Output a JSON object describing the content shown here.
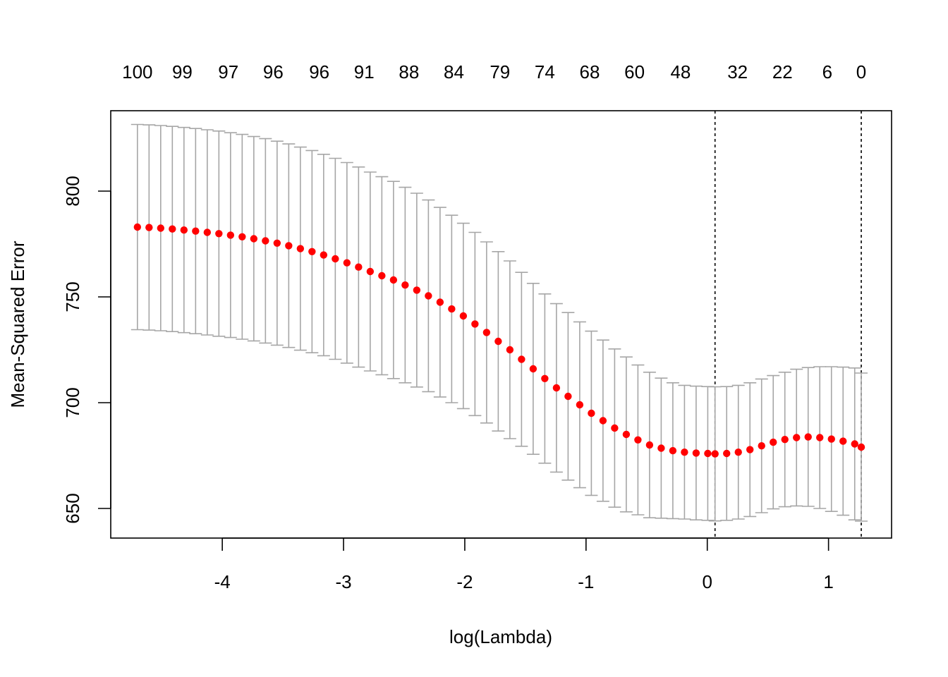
{
  "chart_data": {
    "type": "scatter",
    "title": "",
    "xlabel": "log(Lambda)",
    "ylabel": "Mean-Squared Error",
    "xlim": [
      -4.92,
      1.52
    ],
    "ylim": [
      636,
      838
    ],
    "x_ticks": [
      "-4",
      "-3",
      "-2",
      "-1",
      "0",
      "1"
    ],
    "x_tick_values": [
      -4,
      -3,
      -2,
      -1,
      0,
      1
    ],
    "y_ticks": [
      "650",
      "700",
      "750",
      "800"
    ],
    "y_tick_values": [
      650,
      700,
      750,
      800
    ],
    "top_axis_labels": [
      "100",
      "99",
      "97",
      "96",
      "96",
      "91",
      "88",
      "84",
      "79",
      "74",
      "68",
      "60",
      "48",
      "32",
      "22",
      "6",
      "0"
    ],
    "top_axis_positions": [
      -4.7,
      -4.33,
      -3.95,
      -3.58,
      -3.2,
      -2.83,
      -2.46,
      -2.09,
      -1.71,
      -1.34,
      -0.97,
      -0.6,
      -0.22,
      0.25,
      0.62,
      0.99,
      1.27
    ],
    "reference_lines": [
      0.064,
      1.27
    ],
    "colors": {
      "point": "#ff0000",
      "errorbar": "#a6a6a6",
      "reference": "#000000"
    },
    "grid": false,
    "series": [
      {
        "x": [
          -4.7,
          -4.604,
          -4.508,
          -4.412,
          -4.316,
          -4.22,
          -4.124,
          -4.028,
          -3.932,
          -3.836,
          -3.74,
          -3.644,
          -3.548,
          -3.452,
          -3.356,
          -3.26,
          -3.164,
          -3.068,
          -2.972,
          -2.876,
          -2.78,
          -2.684,
          -2.588,
          -2.492,
          -2.396,
          -2.3,
          -2.204,
          -2.108,
          -2.012,
          -1.916,
          -1.82,
          -1.724,
          -1.628,
          -1.532,
          -1.436,
          -1.34,
          -1.244,
          -1.148,
          -1.052,
          -0.956,
          -0.86,
          -0.764,
          -0.668,
          -0.572,
          -0.476,
          -0.38,
          -0.284,
          -0.188,
          -0.092,
          0.004,
          0.064,
          0.16,
          0.256,
          0.352,
          0.448,
          0.544,
          0.64,
          0.736,
          0.832,
          0.928,
          1.024,
          1.12,
          1.216,
          1.27
        ],
        "y": [
          783.0,
          782.8,
          782.5,
          782.1,
          781.6,
          781.1,
          780.5,
          779.9,
          779.2,
          778.4,
          777.5,
          776.5,
          775.4,
          774.2,
          772.8,
          771.4,
          769.8,
          768.0,
          766.1,
          764.1,
          762.0,
          760.0,
          758.0,
          755.6,
          753.2,
          750.5,
          747.5,
          744.3,
          741.0,
          737.2,
          733.2,
          729.0,
          725.0,
          720.5,
          716.0,
          711.4,
          707.0,
          703.0,
          699.0,
          695.0,
          691.5,
          688.0,
          685.0,
          682.4,
          680.0,
          678.5,
          677.3,
          676.6,
          676.2,
          676.0,
          675.8,
          676.0,
          676.6,
          677.8,
          679.6,
          681.3,
          682.6,
          683.5,
          683.8,
          683.5,
          682.8,
          681.8,
          680.5,
          679.0
        ],
        "y_upper": [
          831.5,
          831.3,
          831.0,
          830.6,
          830.1,
          829.6,
          829.0,
          828.4,
          827.6,
          826.8,
          825.8,
          824.8,
          823.6,
          822.3,
          820.8,
          819.2,
          817.4,
          815.5,
          813.5,
          811.4,
          809.0,
          806.8,
          804.6,
          801.8,
          799.0,
          795.8,
          792.3,
          788.6,
          784.8,
          780.5,
          776.0,
          771.4,
          767.0,
          761.6,
          756.4,
          751.4,
          746.8,
          742.6,
          738.2,
          733.8,
          729.6,
          725.4,
          721.6,
          717.8,
          714.4,
          711.6,
          709.4,
          708.2,
          707.8,
          707.6,
          707.5,
          707.6,
          708.2,
          709.4,
          711.2,
          712.8,
          714.4,
          715.8,
          716.6,
          717.0,
          717.0,
          716.8,
          716.4,
          714.0
        ],
        "y_lower": [
          734.5,
          734.3,
          734.0,
          733.6,
          733.1,
          732.6,
          732.0,
          731.4,
          730.8,
          730.0,
          729.2,
          728.2,
          727.2,
          726.1,
          724.8,
          723.6,
          722.2,
          720.5,
          718.7,
          716.8,
          715.0,
          713.2,
          711.4,
          709.4,
          707.4,
          705.2,
          702.7,
          700.0,
          697.2,
          693.9,
          690.4,
          686.6,
          683.0,
          679.4,
          675.6,
          671.4,
          667.2,
          663.4,
          659.8,
          656.2,
          653.4,
          650.6,
          648.4,
          647.0,
          645.6,
          645.4,
          645.2,
          645.0,
          644.6,
          644.4,
          644.1,
          644.4,
          645.0,
          646.2,
          648.0,
          649.8,
          650.8,
          651.2,
          651.0,
          650.0,
          648.6,
          646.8,
          644.6,
          644.0
        ]
      }
    ]
  }
}
